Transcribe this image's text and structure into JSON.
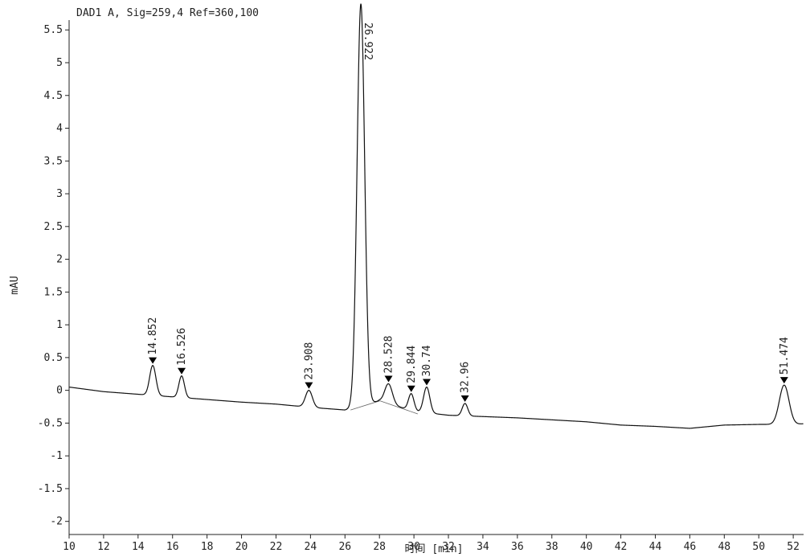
{
  "chart_data": {
    "type": "line",
    "title": "DAD1 A, Sig=259,4 Ref=360,100",
    "xlabel": "时间 [min]",
    "ylabel": "mAU",
    "xlim": [
      10,
      52.6
    ],
    "ylim": [
      -2.2,
      5.65
    ],
    "x_ticks": [
      10,
      12,
      14,
      16,
      18,
      20,
      22,
      24,
      26,
      28,
      30,
      32,
      34,
      36,
      38,
      40,
      42,
      44,
      46,
      48,
      50,
      52
    ],
    "x_tick_labels": [
      "10",
      "12",
      "14",
      "16",
      "18",
      "20",
      "22",
      "24",
      "26",
      "28",
      "30",
      "32",
      "34",
      "36",
      "38",
      "40",
      "42",
      "44",
      "46",
      "48",
      "50",
      "52"
    ],
    "y_ticks": [
      5.5,
      5,
      4.5,
      4,
      3.5,
      3,
      2.5,
      2,
      1.5,
      1,
      0.5,
      0,
      -0.5,
      -1,
      -1.5,
      -2
    ],
    "y_tick_labels": [
      "5.5",
      "5",
      "4.5",
      "4",
      "3.5",
      "3",
      "2.5",
      "2",
      "1.5",
      "1",
      "0.5",
      "0",
      "-0.5",
      "-1",
      "-1.5",
      "-2"
    ],
    "grid": false,
    "baseline": [
      {
        "x": 10,
        "y": 0.05
      },
      {
        "x": 12,
        "y": -0.02
      },
      {
        "x": 14,
        "y": -0.06
      },
      {
        "x": 16,
        "y": -0.1
      },
      {
        "x": 18,
        "y": -0.14
      },
      {
        "x": 20,
        "y": -0.18
      },
      {
        "x": 22,
        "y": -0.21
      },
      {
        "x": 24,
        "y": -0.26
      },
      {
        "x": 26,
        "y": -0.3
      },
      {
        "x": 28,
        "y": -0.16
      },
      {
        "x": 30,
        "y": -0.32
      },
      {
        "x": 32,
        "y": -0.38
      },
      {
        "x": 34,
        "y": -0.4
      },
      {
        "x": 36,
        "y": -0.42
      },
      {
        "x": 38,
        "y": -0.45
      },
      {
        "x": 40,
        "y": -0.48
      },
      {
        "x": 42,
        "y": -0.53
      },
      {
        "x": 44,
        "y": -0.55
      },
      {
        "x": 46,
        "y": -0.58
      },
      {
        "x": 48,
        "y": -0.53
      },
      {
        "x": 50,
        "y": -0.52
      },
      {
        "x": 52,
        "y": -0.52
      },
      {
        "x": 52.6,
        "y": -0.51
      }
    ],
    "peaks": [
      {
        "rt": 14.852,
        "label": "14.852",
        "height": 0.38,
        "width": 0.18
      },
      {
        "rt": 16.526,
        "label": "16.526",
        "height": 0.22,
        "width": 0.16
      },
      {
        "rt": 23.908,
        "label": "23.908",
        "height": 0.0,
        "width": 0.2
      },
      {
        "rt": 26.922,
        "label": "26.922",
        "height": 5.9,
        "width": 0.22
      },
      {
        "rt": 28.528,
        "label": "28.528",
        "height": 0.1,
        "width": 0.22
      },
      {
        "rt": 29.844,
        "label": "29.844",
        "height": -0.05,
        "width": 0.16
      },
      {
        "rt": 30.74,
        "label": "30.74",
        "height": 0.05,
        "width": 0.18
      },
      {
        "rt": 32.96,
        "label": "32.96",
        "height": -0.2,
        "width": 0.16
      },
      {
        "rt": 51.474,
        "label": "51.474",
        "height": 0.08,
        "width": 0.28
      }
    ],
    "colors": {
      "trace": "#111111",
      "axis": "#222222",
      "marker": "#000000",
      "baseline_fit": "#666666"
    }
  }
}
